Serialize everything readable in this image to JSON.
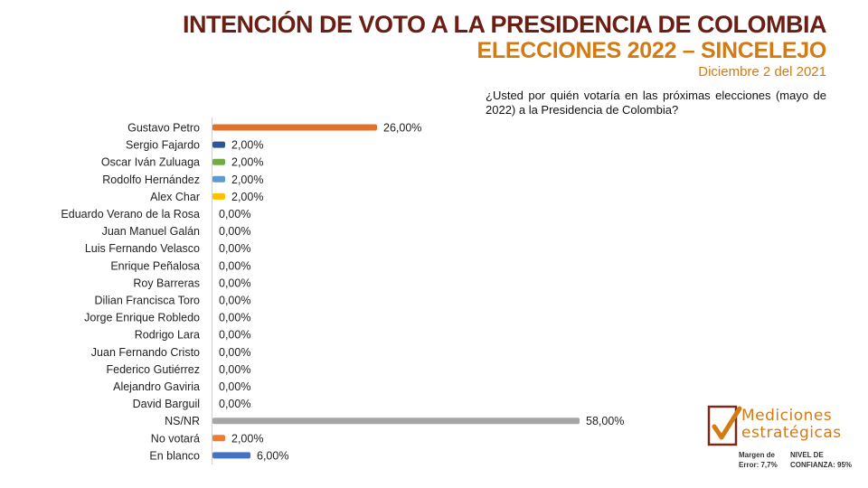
{
  "header": {
    "title": "INTENCIÓN DE VOTO A LA PRESIDENCIA DE COLOMBIA",
    "subtitle": "ELECCIONES 2022 – SINCELEJO",
    "date": "Diciembre 2 del 2021",
    "question": "¿Usted por quién votaría en las próximas elecciones (mayo de 2022) a la Presidencia de Colombia?"
  },
  "logo": {
    "line1": "Mediciones",
    "line2": "estratégicas"
  },
  "footer": {
    "margin_label": "Margen de Error: 7,7%",
    "confidence_label": "NIVEL DE CONFIANZA: 95%"
  },
  "colors": {
    "title": "#6b1f14",
    "accent": "#d47a12"
  },
  "chart_data": {
    "type": "bar",
    "orientation": "horizontal",
    "title": "",
    "xlabel": "",
    "ylabel": "",
    "xlim": [
      0,
      60
    ],
    "grid": false,
    "legend": "none",
    "categories": [
      "Gustavo Petro",
      "Sergio Fajardo",
      "Oscar Iván Zuluaga",
      "Rodolfo Hernández",
      "Alex Char",
      "Eduardo Verano de la Rosa",
      "Juan Manuel Galán",
      "Luis Fernando Velasco",
      "Enrique Peñalosa",
      "Roy Barreras",
      "Dilian Francisca Toro",
      "Jorge Enrique Robledo",
      "Rodrigo Lara",
      "Juan Fernando Cristo",
      "Federico Gutiérrez",
      "Alejandro Gaviria",
      "David Barguil",
      "NS/NR",
      "No votará",
      "En blanco"
    ],
    "values": [
      26,
      2,
      2,
      2,
      2,
      0,
      0,
      0,
      0,
      0,
      0,
      0,
      0,
      0,
      0,
      0,
      0,
      58,
      2,
      6
    ],
    "labels": [
      "26,00%",
      "2,00%",
      "2,00%",
      "2,00%",
      "2,00%",
      "0,00%",
      "0,00%",
      "0,00%",
      "0,00%",
      "0,00%",
      "0,00%",
      "0,00%",
      "0,00%",
      "0,00%",
      "0,00%",
      "0,00%",
      "0,00%",
      "58,00%",
      "2,00%",
      "6,00%"
    ],
    "bar_colors": [
      "#e0722a",
      "#2f5597",
      "#70ad47",
      "#5b9bd5",
      "#ffc000",
      "#bfbfbf",
      "#bfbfbf",
      "#bfbfbf",
      "#bfbfbf",
      "#bfbfbf",
      "#bfbfbf",
      "#bfbfbf",
      "#bfbfbf",
      "#bfbfbf",
      "#bfbfbf",
      "#bfbfbf",
      "#bfbfbf",
      "#a6a6a6",
      "#ed7d31",
      "#4472c4"
    ]
  }
}
